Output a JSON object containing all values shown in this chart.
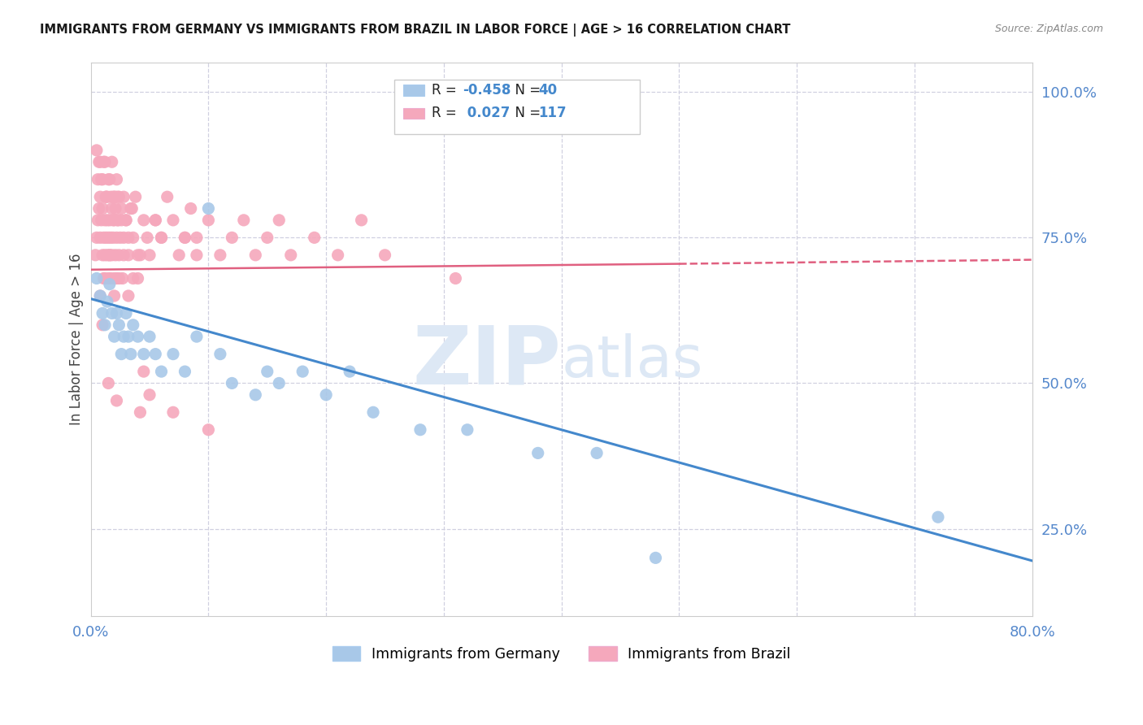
{
  "title": "IMMIGRANTS FROM GERMANY VS IMMIGRANTS FROM BRAZIL IN LABOR FORCE | AGE > 16 CORRELATION CHART",
  "source": "Source: ZipAtlas.com",
  "ylabel": "In Labor Force | Age > 16",
  "xlim": [
    0.0,
    0.8
  ],
  "ylim": [
    0.1,
    1.05
  ],
  "xticks": [
    0.0,
    0.1,
    0.2,
    0.3,
    0.4,
    0.5,
    0.6,
    0.7,
    0.8
  ],
  "xticklabels": [
    "0.0%",
    "",
    "",
    "",
    "",
    "",
    "",
    "",
    "80.0%"
  ],
  "yticks_right": [
    0.25,
    0.5,
    0.75,
    1.0
  ],
  "yticklabels_right": [
    "25.0%",
    "50.0%",
    "75.0%",
    "100.0%"
  ],
  "germany_color": "#a8c8e8",
  "brazil_color": "#f5a8bc",
  "germany_line_color": "#4488cc",
  "brazil_line_color": "#e06080",
  "watermark_color": "#dde8f5",
  "grid_color": "#d0d0e0",
  "tick_color": "#5588cc",
  "legend_germany_r": "-0.458",
  "legend_germany_n": "40",
  "legend_brazil_r": "0.027",
  "legend_brazil_n": "117",
  "germany_scatter_x": [
    0.005,
    0.008,
    0.01,
    0.012,
    0.014,
    0.016,
    0.018,
    0.02,
    0.022,
    0.024,
    0.026,
    0.028,
    0.03,
    0.032,
    0.034,
    0.036,
    0.04,
    0.045,
    0.05,
    0.055,
    0.06,
    0.07,
    0.08,
    0.09,
    0.1,
    0.11,
    0.12,
    0.14,
    0.15,
    0.16,
    0.18,
    0.2,
    0.22,
    0.24,
    0.28,
    0.32,
    0.38,
    0.43,
    0.48,
    0.72
  ],
  "germany_scatter_y": [
    0.68,
    0.65,
    0.62,
    0.6,
    0.64,
    0.67,
    0.62,
    0.58,
    0.62,
    0.6,
    0.55,
    0.58,
    0.62,
    0.58,
    0.55,
    0.6,
    0.58,
    0.55,
    0.58,
    0.55,
    0.52,
    0.55,
    0.52,
    0.58,
    0.8,
    0.55,
    0.5,
    0.48,
    0.52,
    0.5,
    0.52,
    0.48,
    0.52,
    0.45,
    0.42,
    0.42,
    0.38,
    0.38,
    0.2,
    0.27
  ],
  "brazil_scatter_x": [
    0.004,
    0.005,
    0.006,
    0.007,
    0.008,
    0.008,
    0.009,
    0.01,
    0.01,
    0.011,
    0.011,
    0.012,
    0.012,
    0.013,
    0.013,
    0.014,
    0.014,
    0.015,
    0.015,
    0.016,
    0.016,
    0.017,
    0.017,
    0.018,
    0.018,
    0.019,
    0.019,
    0.02,
    0.02,
    0.021,
    0.021,
    0.022,
    0.022,
    0.023,
    0.023,
    0.024,
    0.025,
    0.026,
    0.027,
    0.028,
    0.03,
    0.032,
    0.034,
    0.036,
    0.038,
    0.04,
    0.042,
    0.045,
    0.048,
    0.05,
    0.055,
    0.06,
    0.065,
    0.07,
    0.075,
    0.08,
    0.085,
    0.09,
    0.1,
    0.11,
    0.12,
    0.13,
    0.14,
    0.15,
    0.16,
    0.17,
    0.19,
    0.21,
    0.23,
    0.25,
    0.006,
    0.008,
    0.01,
    0.012,
    0.014,
    0.016,
    0.018,
    0.02,
    0.022,
    0.024,
    0.026,
    0.028,
    0.03,
    0.032,
    0.005,
    0.007,
    0.009,
    0.011,
    0.013,
    0.015,
    0.017,
    0.019,
    0.021,
    0.023,
    0.04,
    0.06,
    0.09,
    0.035,
    0.055,
    0.08,
    0.31,
    0.008,
    0.012,
    0.016,
    0.02,
    0.024,
    0.028,
    0.032,
    0.036,
    0.042,
    0.05,
    0.07,
    0.1,
    0.01,
    0.015,
    0.022,
    0.045
  ],
  "brazil_scatter_y": [
    0.72,
    0.75,
    0.78,
    0.8,
    0.82,
    0.75,
    0.78,
    0.72,
    0.8,
    0.75,
    0.68,
    0.72,
    0.78,
    0.75,
    0.82,
    0.72,
    0.78,
    0.68,
    0.75,
    0.72,
    0.78,
    0.68,
    0.75,
    0.8,
    0.72,
    0.75,
    0.82,
    0.68,
    0.78,
    0.72,
    0.8,
    0.75,
    0.68,
    0.78,
    0.82,
    0.72,
    0.75,
    0.8,
    0.68,
    0.75,
    0.78,
    0.72,
    0.8,
    0.75,
    0.82,
    0.68,
    0.72,
    0.78,
    0.75,
    0.72,
    0.78,
    0.75,
    0.82,
    0.78,
    0.72,
    0.75,
    0.8,
    0.75,
    0.78,
    0.72,
    0.75,
    0.78,
    0.72,
    0.75,
    0.78,
    0.72,
    0.75,
    0.72,
    0.78,
    0.72,
    0.85,
    0.88,
    0.85,
    0.88,
    0.82,
    0.85,
    0.88,
    0.82,
    0.85,
    0.82,
    0.78,
    0.82,
    0.78,
    0.75,
    0.9,
    0.88,
    0.85,
    0.88,
    0.82,
    0.85,
    0.82,
    0.78,
    0.82,
    0.78,
    0.72,
    0.75,
    0.72,
    0.8,
    0.78,
    0.75,
    0.68,
    0.65,
    0.68,
    0.72,
    0.65,
    0.68,
    0.72,
    0.65,
    0.68,
    0.45,
    0.48,
    0.45,
    0.42,
    0.6,
    0.5,
    0.47,
    0.52
  ]
}
